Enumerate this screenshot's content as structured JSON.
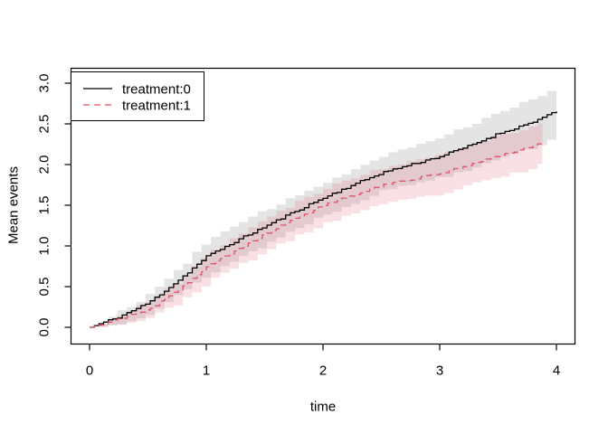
{
  "figure": {
    "background_color": "#ffffff",
    "axis_color": "#000000"
  },
  "chart_data": {
    "type": "line",
    "title": "",
    "xlabel": "time",
    "ylabel": "Mean events",
    "xlim": [
      0,
      4
    ],
    "ylim": [
      0,
      3
    ],
    "x_ticks": [
      0,
      1,
      2,
      3,
      4
    ],
    "y_ticks": [
      "0.0",
      "0.5",
      "1.0",
      "1.5",
      "2.0",
      "2.5",
      "3.0"
    ],
    "grid": "off",
    "legend": {
      "position": "top-left",
      "border": true,
      "entries": [
        {
          "label": "treatment:0",
          "color": "#000000",
          "line_style": "solid"
        },
        {
          "label": "treatment:1",
          "color": "#DF536B",
          "line_style": "dashed"
        }
      ]
    },
    "series": [
      {
        "name": "treatment:0",
        "color": "#000000",
        "line_style": "solid",
        "line_kind": "step",
        "band_color": "#bebebe",
        "band_opacity": 0.42,
        "t": [
          0,
          0.25,
          0.5,
          0.75,
          1.0,
          1.25,
          1.5,
          1.75,
          2.0,
          2.25,
          2.5,
          2.75,
          3.0,
          3.25,
          3.5,
          3.75,
          4.0
        ],
        "y": [
          0,
          0.13,
          0.3,
          0.57,
          0.87,
          1.06,
          1.24,
          1.42,
          1.59,
          1.75,
          1.9,
          2.0,
          2.1,
          2.23,
          2.38,
          2.5,
          2.65
        ],
        "ci_halfwidth": [
          0,
          0.07,
          0.12,
          0.16,
          0.21,
          0.21,
          0.21,
          0.2,
          0.2,
          0.21,
          0.22,
          0.23,
          0.25,
          0.27,
          0.28,
          0.3,
          0.31
        ]
      },
      {
        "name": "treatment:1",
        "color": "#DF536B",
        "line_style": "dashed",
        "line_kind": "step",
        "band_color": "#DF536B",
        "band_opacity": 0.18,
        "t": [
          0,
          0.25,
          0.5,
          0.75,
          1.0,
          1.25,
          1.5,
          1.75,
          2.0,
          2.25,
          2.5,
          2.75,
          3.0,
          3.25,
          3.5,
          3.75,
          3.88
        ],
        "y": [
          0,
          0.1,
          0.22,
          0.45,
          0.74,
          0.95,
          1.14,
          1.33,
          1.5,
          1.63,
          1.74,
          1.82,
          1.89,
          2.0,
          2.11,
          2.2,
          2.28
        ],
        "ci_halfwidth": [
          0,
          0.06,
          0.1,
          0.14,
          0.18,
          0.19,
          0.2,
          0.21,
          0.22,
          0.22,
          0.23,
          0.24,
          0.25,
          0.25,
          0.26,
          0.26,
          0.26
        ]
      }
    ]
  }
}
